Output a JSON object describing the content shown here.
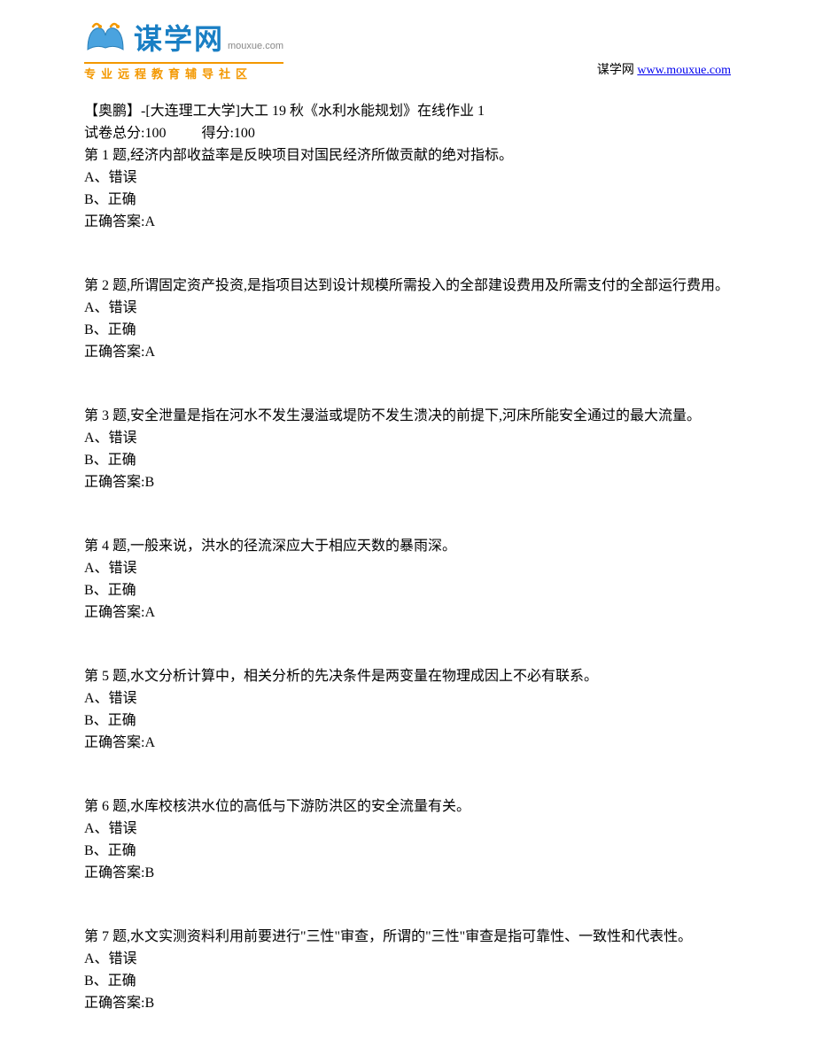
{
  "header": {
    "logo_cn": "谋学网",
    "logo_en": "mouxue.com",
    "logo_tagline": "专业远程教育辅导社区",
    "site_label": "谋学网",
    "site_url": "www.mouxue.com"
  },
  "exam": {
    "title": "【奥鹏】-[大连理工大学]大工 19 秋《水利水能规划》在线作业 1",
    "total_score_label": "试卷总分:",
    "total_score": "100",
    "gained_score_label": "得分:",
    "gained_score": "100"
  },
  "options": {
    "a": "A、错误",
    "b": "B、正确"
  },
  "answer_label": "正确答案:",
  "questions": [
    {
      "prompt": "第 1 题,经济内部收益率是反映项目对国民经济所做贡献的绝对指标。",
      "answer": "A"
    },
    {
      "prompt": "第 2 题,所谓固定资产投资,是指项目达到设计规模所需投入的全部建设费用及所需支付的全部运行费用。",
      "answer": "A"
    },
    {
      "prompt": "第 3 题,安全泄量是指在河水不发生漫溢或堤防不发生溃决的前提下,河床所能安全通过的最大流量。",
      "answer": "B"
    },
    {
      "prompt": "第 4 题,一般来说，洪水的径流深应大于相应天数的暴雨深。",
      "answer": "A"
    },
    {
      "prompt": "第 5 题,水文分析计算中，相关分析的先决条件是两变量在物理成因上不必有联系。",
      "answer": "A"
    },
    {
      "prompt": "第 6 题,水库校核洪水位的高低与下游防洪区的安全流量有关。",
      "answer": "B"
    },
    {
      "prompt": "第 7 题,水文实测资料利用前要进行\"三性\"审查，所谓的\"三性\"审查是指可靠性、一致性和代表性。",
      "answer": "B"
    }
  ]
}
